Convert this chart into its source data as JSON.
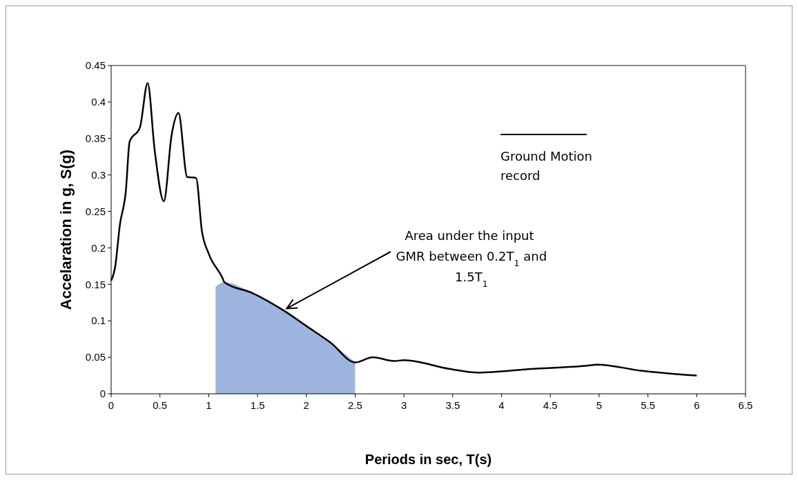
{
  "chart_data": {
    "type": "line",
    "xlabel": "Periods in sec, T(s)",
    "ylabel": "Accelaration in g, S(g)",
    "xlim": [
      0,
      6.5
    ],
    "xticks": [
      0,
      0.5,
      1,
      1.5,
      2,
      2.5,
      3,
      3.5,
      4,
      4.5,
      5,
      5.5,
      6,
      6.5
    ],
    "ylim": [
      0,
      0.45
    ],
    "yticks": [
      0,
      0.05,
      0.1,
      0.15,
      0.2,
      0.25,
      0.3,
      0.35,
      0.4,
      0.45
    ],
    "series": [
      {
        "type": "area",
        "color": "#9db5de",
        "x": [
          1.07,
          1.16,
          1.45,
          1.77,
          2.0,
          2.25,
          2.5
        ],
        "values": [
          0.147,
          0.153,
          0.138,
          0.114,
          0.093,
          0.07,
          0.043
        ]
      },
      {
        "name": "Ground Motion record",
        "color": "#000000",
        "x": [
          0,
          0.04,
          0.09,
          0.15,
          0.19,
          0.295,
          0.374,
          0.446,
          0.54,
          0.62,
          0.69,
          0.78,
          0.87,
          0.93,
          1.0,
          1.14,
          1.16,
          1.45,
          1.77,
          2.0,
          2.25,
          2.5,
          2.68,
          2.9,
          3.0,
          3.47,
          3.76,
          4.3,
          4.83,
          4.99,
          5.41,
          6.0
        ],
        "values": [
          0.155,
          0.173,
          0.232,
          0.277,
          0.346,
          0.365,
          0.426,
          0.334,
          0.264,
          0.355,
          0.385,
          0.297,
          0.296,
          0.223,
          0.192,
          0.159,
          0.153,
          0.138,
          0.114,
          0.093,
          0.07,
          0.043,
          0.05,
          0.045,
          0.046,
          0.034,
          0.029,
          0.034,
          0.038,
          0.04,
          0.032,
          0.025
        ]
      }
    ],
    "annotations": [
      "Area under the input GMR between 0.2T$_{1}$ and 1.5T$_{1}$"
    ],
    "legend": "top right",
    "marker": "none",
    "line_style": "solid",
    "grid": false
  }
}
